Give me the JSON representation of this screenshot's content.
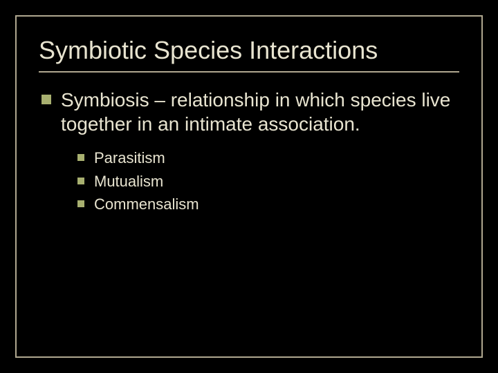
{
  "slide": {
    "title": "Symbiotic Species Interactions",
    "title_color": "#e8e4d0",
    "title_fontsize": 36,
    "background_color": "#000000",
    "border_color": "#b0a890",
    "body": {
      "text": "Symbiosis – relationship in which species live together in an intimate association.",
      "text_color": "#e8e4d0",
      "fontsize": 28,
      "bullet_color": "#a8b070",
      "bullet_size": 14,
      "subitems": [
        {
          "text": "Parasitism"
        },
        {
          "text": "Mutualism"
        },
        {
          "text": "Commensalism"
        }
      ],
      "sub_fontsize": 22,
      "sub_bullet_color": "#a8b070",
      "sub_bullet_size": 10
    }
  }
}
